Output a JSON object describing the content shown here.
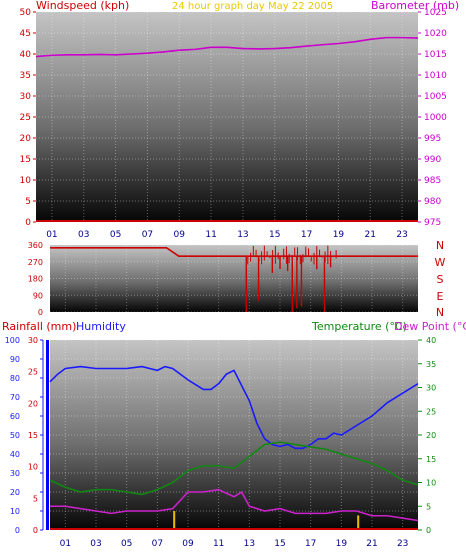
{
  "header": {
    "windspeed_label": "Windspeed (kph)",
    "subtitle": "24 hour graph day   May 22 2005",
    "barometer_label": "Barometer (mb)"
  },
  "compass_labels": [
    "N",
    "W",
    "S",
    "E",
    "N"
  ],
  "lower_header": {
    "rainfall_label": "Rainfall (mm)",
    "humidity_label": "Humidity",
    "temperature_label": "Temperature (°C)",
    "dewpoint_label": "Dew Point (°C)"
  },
  "colors": {
    "windspeed": "#cc0000",
    "barometer": "#cc00cc",
    "subtitle": "#e6c800",
    "direction": "#cc0000",
    "rainfall": "#cc0000",
    "rain_axis": "#0000ff",
    "humidity": "#1a1aff",
    "temperature": "#118811",
    "dewpoint": "#cc22cc"
  },
  "chart_data": [
    {
      "type": "line",
      "title": "24 hour graph day   May 22 2005",
      "x_ticks": [
        "01",
        "03",
        "05",
        "07",
        "09",
        "11",
        "13",
        "15",
        "17",
        "19",
        "21",
        "23"
      ],
      "xlim": [
        0,
        24
      ],
      "left_axis": {
        "label": "Windspeed (kph)",
        "ylim": [
          0,
          50
        ],
        "ticks": [
          0,
          5,
          10,
          15,
          20,
          25,
          30,
          35,
          40,
          45,
          50
        ]
      },
      "right_axis": {
        "label": "Barometer (mb)",
        "ylim": [
          975,
          1025
        ],
        "ticks": [
          975,
          980,
          985,
          990,
          995,
          1000,
          1005,
          1010,
          1015,
          1020,
          1025
        ]
      },
      "series": [
        {
          "name": "Windspeed (kph)",
          "axis": "left",
          "x": [
            0,
            24
          ],
          "y": [
            0,
            0
          ]
        },
        {
          "name": "Barometer (mb)",
          "axis": "right",
          "x": [
            0,
            1,
            2,
            3,
            4,
            5,
            6,
            7,
            8,
            9,
            10,
            11,
            12,
            13,
            14,
            15,
            16,
            17,
            18,
            19,
            20,
            21,
            22,
            23,
            24
          ],
          "y": [
            1014.4,
            1014.7,
            1014.8,
            1014.8,
            1014.9,
            1014.8,
            1015.0,
            1015.2,
            1015.5,
            1015.9,
            1016.1,
            1016.6,
            1016.6,
            1016.3,
            1016.2,
            1016.3,
            1016.5,
            1016.9,
            1017.2,
            1017.5,
            1017.9,
            1018.5,
            1018.9,
            1018.9,
            1018.8
          ]
        }
      ]
    },
    {
      "type": "line",
      "title": "",
      "xlim": [
        0,
        24
      ],
      "left_axis": {
        "ylim": [
          0,
          360
        ],
        "ticks": [
          0,
          90,
          180,
          270,
          360
        ]
      },
      "series": [
        {
          "name": "Direction",
          "x": [
            0,
            7.6,
            8.4,
            24
          ],
          "y": [
            345,
            345,
            300,
            300
          ]
        }
      ],
      "spikes": [
        {
          "x": 12.8,
          "y": 0
        },
        {
          "x": 13.6,
          "y": 60
        },
        {
          "x": 14.5,
          "y": 210
        },
        {
          "x": 15.0,
          "y": 230
        },
        {
          "x": 15.5,
          "y": 220
        },
        {
          "x": 15.8,
          "y": 0
        },
        {
          "x": 16.1,
          "y": 20
        },
        {
          "x": 16.4,
          "y": 30
        },
        {
          "x": 17.4,
          "y": 230
        },
        {
          "x": 17.9,
          "y": 0
        },
        {
          "x": 18.3,
          "y": 240
        }
      ]
    },
    {
      "type": "line",
      "title": "",
      "x_ticks": [
        "01",
        "03",
        "05",
        "07",
        "09",
        "11",
        "13",
        "15",
        "17",
        "19",
        "21",
        "23"
      ],
      "xlim": [
        0,
        24
      ],
      "rain_axis": {
        "label": "Rainfall (mm)",
        "ylim": [
          0,
          30
        ],
        "ticks": [
          0,
          5,
          10,
          15,
          20,
          25,
          30
        ]
      },
      "humidity_axis": {
        "label": "Humidity",
        "ylim": [
          0,
          100
        ],
        "ticks": [
          0,
          10,
          20,
          30,
          40,
          50,
          60,
          70,
          80,
          90,
          100
        ]
      },
      "temp_axis": {
        "label": "Temperature (°C)",
        "ylim": [
          0,
          40
        ],
        "ticks": [
          0,
          5,
          10,
          15,
          20,
          25,
          30,
          35,
          40
        ]
      },
      "series": [
        {
          "name": "Humidity",
          "axis": "humidity",
          "x": [
            0,
            0.5,
            1,
            2,
            3,
            4,
            5,
            6,
            7,
            7.5,
            8,
            9,
            10,
            10.5,
            11,
            11.5,
            12,
            13,
            13.5,
            14,
            14.5,
            15,
            15.5,
            16,
            16.5,
            17,
            17.5,
            18,
            18.5,
            19,
            20,
            21,
            22,
            23,
            24
          ],
          "y": [
            78,
            82,
            85,
            86,
            85,
            85,
            85,
            86,
            84,
            86,
            85,
            79,
            74,
            74,
            77,
            82,
            84,
            68,
            56,
            48,
            45,
            44,
            45,
            43,
            43,
            45,
            48,
            48,
            51,
            50,
            55,
            60,
            67,
            72,
            77
          ]
        },
        {
          "name": "Temperature (°C)",
          "axis": "temp",
          "x": [
            0,
            1,
            2,
            3,
            4,
            5,
            6,
            7,
            8,
            9,
            10,
            11,
            12,
            13,
            14,
            15,
            16,
            17,
            18,
            19,
            20,
            21,
            22,
            23,
            24
          ],
          "y": [
            10.5,
            9,
            8,
            8.5,
            8.5,
            8,
            7.5,
            8.5,
            10,
            12.5,
            13.5,
            13.5,
            13,
            15.5,
            18,
            18.5,
            18,
            17.5,
            17,
            16,
            15,
            14,
            12.5,
            10.5,
            9.5
          ]
        },
        {
          "name": "Dew Point (°C)",
          "axis": "temp",
          "x": [
            0,
            1,
            2,
            3,
            4,
            5,
            6,
            7,
            8,
            9,
            10,
            11,
            12,
            12.5,
            13,
            14,
            15,
            16,
            17,
            18,
            19,
            20,
            21,
            22,
            23,
            24
          ],
          "y": [
            5,
            5,
            4.5,
            4,
            3.5,
            4,
            4,
            4,
            4.5,
            8,
            8,
            8.5,
            7,
            8,
            5,
            4,
            4.5,
            3.5,
            3.5,
            3.5,
            4,
            4,
            3,
            3,
            2.5,
            2
          ]
        },
        {
          "name": "Rainfall (mm)",
          "axis": "rain",
          "type": "bar",
          "x": [
            8.1,
            20.1
          ],
          "y": [
            3,
            2.3
          ]
        }
      ]
    }
  ]
}
